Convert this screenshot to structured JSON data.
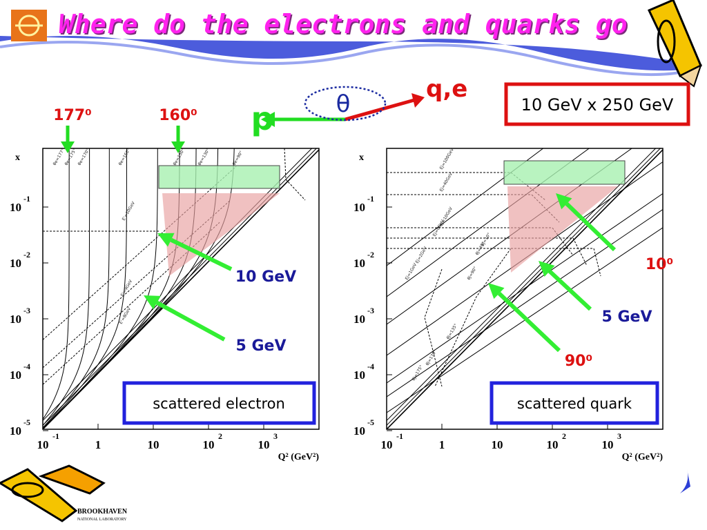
{
  "header": {
    "title": "Where do the electrons and quarks go"
  },
  "kinematics": {
    "proton": "p",
    "angle": "θ",
    "outgoing": "q,e",
    "beams": "10 GeV x 250 GeV"
  },
  "plots": [
    {
      "y_axis": "x",
      "x_axis": "Q² (GeV²)",
      "yticks": [
        {
          "base": "10",
          "exp": "-1"
        },
        {
          "base": "10",
          "exp": "-2"
        },
        {
          "base": "10",
          "exp": "-3"
        },
        {
          "base": "10",
          "exp": "-4"
        },
        {
          "base": "10",
          "exp": "-5"
        }
      ],
      "xticks": [
        {
          "base": "10",
          "exp": "-1"
        },
        {
          "base": "1"
        },
        {
          "base": "10"
        },
        {
          "base": "10",
          "exp": "2"
        },
        {
          "base": "10",
          "exp": "3"
        }
      ],
      "angle_markers": [
        "177⁰",
        "160⁰"
      ],
      "arrow_labels": [
        "10 GeV",
        "5 GeV"
      ],
      "curve_labels": [
        "θe=177°",
        "θe=175°",
        "θe=170°",
        "θe=160°",
        "θe=150°",
        "θe=130°",
        "θe=90°",
        "E'=10GeV",
        "E'=9GeV",
        "E'=8GeV"
      ],
      "caption": "scattered electron"
    },
    {
      "y_axis": "x",
      "x_axis": "Q² (GeV²)",
      "yticks": [
        {
          "base": "10",
          "exp": "-1"
        },
        {
          "base": "10",
          "exp": "-2"
        },
        {
          "base": "10",
          "exp": "-3"
        },
        {
          "base": "10",
          "exp": "-4"
        },
        {
          "base": "10",
          "exp": "-5"
        }
      ],
      "xticks": [
        {
          "base": "10",
          "exp": "-1"
        },
        {
          "base": "1"
        },
        {
          "base": "10"
        },
        {
          "base": "10",
          "exp": "2"
        },
        {
          "base": "10",
          "exp": "3"
        }
      ],
      "arrow_labels": [
        "10⁰",
        "5 GeV",
        "90⁰"
      ],
      "curve_labels": [
        "Ej=100GeV",
        "Ej=40GeV",
        "Ej=10GeV",
        "Ej=6GeV",
        "Ej=2GeV",
        "Ej=1GeV",
        "θj=10°",
        "θj=45°",
        "θj=90°",
        "θj=135°",
        "θj=170°",
        "θj=175°"
      ],
      "caption": "scattered quark"
    }
  ],
  "footer": {
    "lab": "BROOKHAVEN",
    "lab_sub": "NATIONAL LABORATORY"
  }
}
